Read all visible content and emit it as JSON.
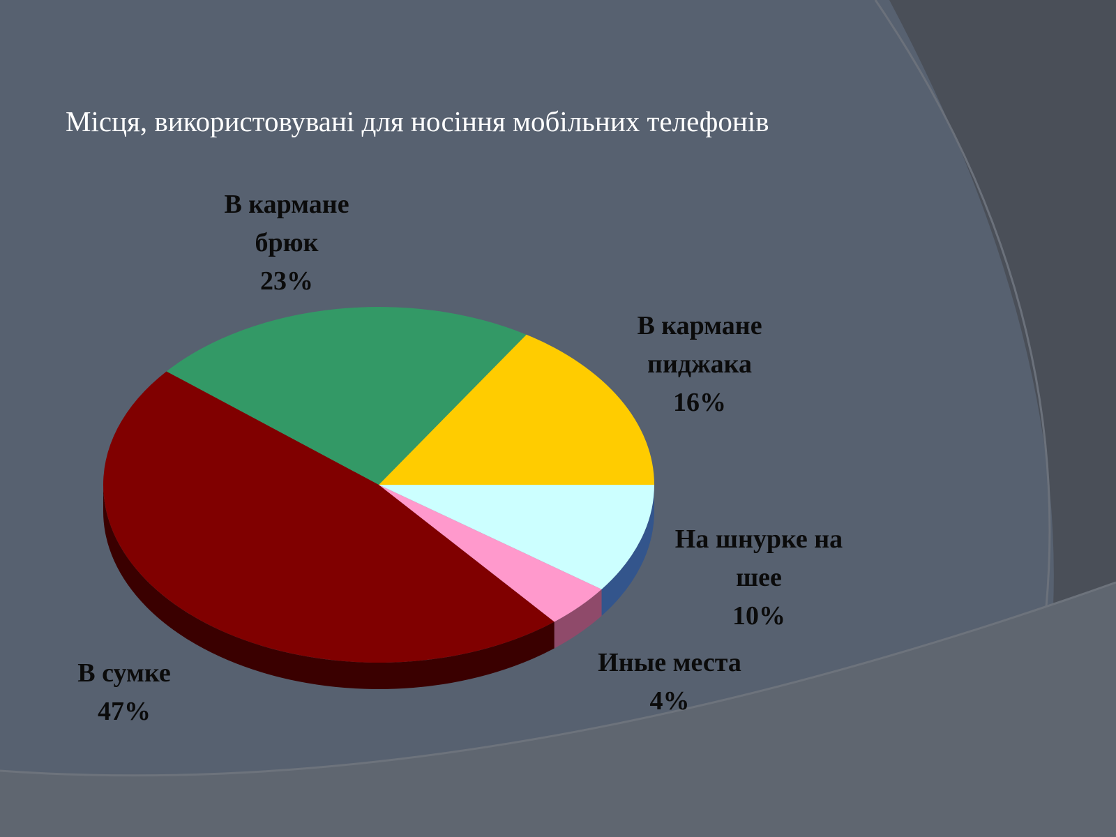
{
  "slide": {
    "title": "Місця, використовувані для носіння мобільних  телефонів"
  },
  "colors": {
    "background": "#576170",
    "background_dark": "#4a4f58",
    "background_light": "#5f6670",
    "label_text": "#0b0b0b",
    "title_text": "#ffffff"
  },
  "chart_data": {
    "type": "pie",
    "style": "3d-tilted",
    "title": "Місця, використовувані для носіння мобільних  телефонів",
    "slices": [
      {
        "label_lines": [
          "В кармане",
          "пиджака"
        ],
        "value": 16,
        "value_label": "16%",
        "color": "#ffcc00",
        "side_color": "#b38f00"
      },
      {
        "label_lines": [
          "В кармане",
          "брюк"
        ],
        "value": 23,
        "value_label": "23%",
        "color": "#339966",
        "side_color": "#226644"
      },
      {
        "label_lines": [
          "В сумке"
        ],
        "value": 47,
        "value_label": "47%",
        "color": "#800000",
        "side_color": "#3a0000"
      },
      {
        "label_lines": [
          "Иные места"
        ],
        "value": 4,
        "value_label": "4%",
        "color": "#ff99cc",
        "side_color": "#8f4a6a"
      },
      {
        "label_lines": [
          "На шнурке на",
          "шее"
        ],
        "value": 10,
        "value_label": "10%",
        "color": "#ccffff",
        "side_color": "#33558c"
      }
    ],
    "legend": "none",
    "data_labels": "outside"
  }
}
